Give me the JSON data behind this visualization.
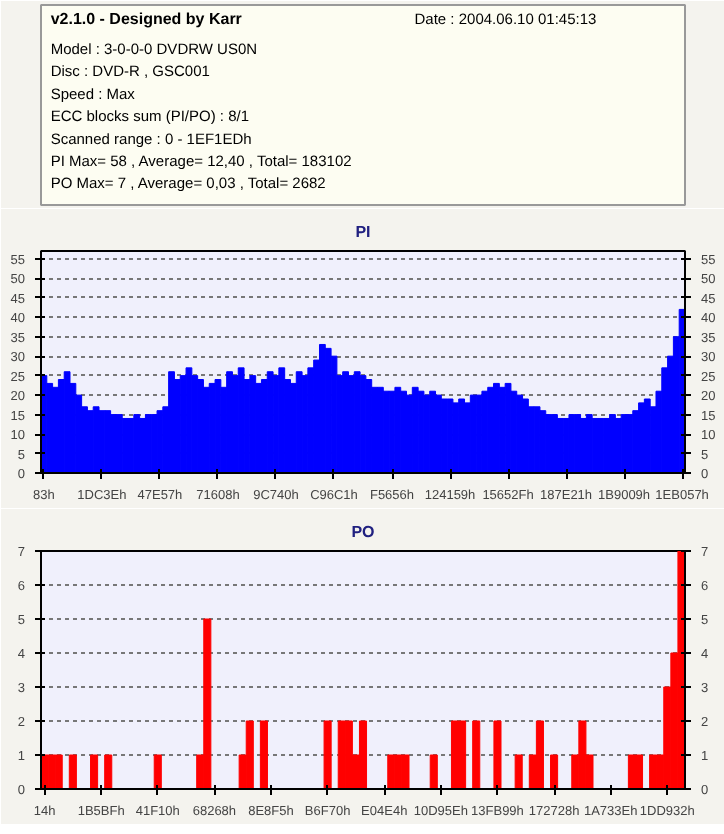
{
  "chart_data": [
    {
      "type": "other",
      "title": "v2.1.0 - Designed by Karr",
      "subtitle": "Date : 2004.06.10 01:45:13",
      "annotations": [
        "Model : 3-0-0-0 DVDRW US0N",
        "Disc : DVD-R , GSC001",
        "Speed : Max",
        "ECC blocks sum (PI/PO) : 8/1",
        "Scanned range : 0 - 1EF1EDh",
        "PI Max= 58 , Average= 12,40 , Total= 183102",
        "PO Max= 7 , Average= 0,03 , Total= 2682"
      ]
    },
    {
      "type": "bar",
      "title": "PI",
      "categories": [
        "83h",
        null,
        null,
        null,
        null,
        null,
        null,
        null,
        null,
        null,
        "1DC3Eh",
        null,
        null,
        null,
        null,
        null,
        null,
        null,
        null,
        null,
        "47E57h",
        null,
        null,
        null,
        null,
        null,
        null,
        null,
        null,
        null,
        "71608h",
        null,
        null,
        null,
        null,
        null,
        null,
        null,
        null,
        null,
        "9C740h",
        null,
        null,
        null,
        null,
        null,
        null,
        null,
        null,
        null,
        "C96C1h",
        null,
        null,
        null,
        null,
        null,
        null,
        null,
        null,
        null,
        "F5656h",
        null,
        null,
        null,
        null,
        null,
        null,
        null,
        null,
        null,
        "124159h",
        null,
        null,
        null,
        null,
        null,
        null,
        null,
        null,
        null,
        "15652Fh",
        null,
        null,
        null,
        null,
        null,
        null,
        null,
        null,
        null,
        "187E21h",
        null,
        null,
        null,
        null,
        null,
        null,
        null,
        null,
        null,
        "1B9009h",
        null,
        null,
        null,
        null,
        null,
        null,
        null,
        null,
        null,
        "1EB057h"
      ],
      "series": [
        {
          "color": "#0000ff",
          "values": [
            25,
            23,
            22,
            24,
            26,
            23,
            20,
            17,
            16,
            17,
            16,
            16,
            15,
            15,
            14,
            14,
            15,
            14,
            15,
            15,
            16,
            17,
            26,
            24,
            25,
            27,
            25,
            24,
            22,
            23,
            24,
            22,
            26,
            25,
            27,
            24,
            25,
            23,
            24,
            26,
            25,
            27,
            24,
            23,
            26,
            25,
            27,
            29,
            33,
            32,
            30,
            25,
            26,
            25,
            26,
            25,
            24,
            22,
            22,
            21,
            21,
            22,
            21,
            20,
            22,
            21,
            20,
            21,
            20,
            19,
            19,
            18,
            19,
            18,
            20,
            20,
            21,
            22,
            23,
            22,
            23,
            21,
            20,
            19,
            17,
            17,
            16,
            15,
            15,
            14,
            14,
            15,
            15,
            14,
            15,
            14,
            14,
            14,
            15,
            14,
            15,
            15,
            16,
            18,
            19,
            17,
            21,
            27,
            30,
            35,
            42
          ]
        }
      ],
      "ylim": [
        0,
        57
      ],
      "yticks": [
        0,
        5,
        10,
        15,
        20,
        25,
        30,
        35,
        40,
        45,
        50,
        55
      ],
      "y2lim": [
        0,
        57
      ],
      "y2ticks": [
        0,
        5,
        10,
        15,
        20,
        25,
        30,
        35,
        40,
        45,
        50,
        55
      ],
      "grid": "y"
    },
    {
      "type": "bar",
      "title": "PO",
      "categories": [
        "14h",
        null,
        null,
        null,
        null,
        null,
        null,
        null,
        "1B5BFh",
        null,
        null,
        null,
        null,
        null,
        null,
        null,
        "41F10h",
        null,
        null,
        null,
        null,
        null,
        null,
        null,
        "68268h",
        null,
        null,
        null,
        null,
        null,
        null,
        null,
        "8E8F5h",
        null,
        null,
        null,
        null,
        null,
        null,
        null,
        "B6F70h",
        null,
        null,
        null,
        null,
        null,
        null,
        null,
        "E04E4h",
        null,
        null,
        null,
        null,
        null,
        null,
        null,
        "10D95Eh",
        null,
        null,
        null,
        null,
        null,
        null,
        null,
        "13FB99h",
        null,
        null,
        null,
        null,
        null,
        null,
        null,
        "172728h",
        null,
        null,
        null,
        null,
        null,
        null,
        null,
        "1A733Eh",
        null,
        null,
        null,
        null,
        null,
        null,
        null,
        "1DD932h",
        null,
        null
      ],
      "series": [
        {
          "color": "#ff0000",
          "values": [
            1,
            1,
            1,
            0,
            1,
            0,
            0,
            1,
            0,
            1,
            0,
            0,
            0,
            0,
            0,
            0,
            1,
            0,
            0,
            0,
            0,
            0,
            1,
            5,
            0,
            0,
            0,
            0,
            1,
            2,
            0,
            2,
            0,
            0,
            0,
            0,
            0,
            0,
            0,
            0,
            2,
            0,
            2,
            2,
            1,
            2,
            0,
            0,
            0,
            1,
            1,
            1,
            0,
            0,
            0,
            1,
            0,
            0,
            2,
            2,
            0,
            2,
            0,
            0,
            2,
            0,
            0,
            1,
            0,
            1,
            2,
            0,
            1,
            0,
            0,
            1,
            2,
            1,
            0,
            0,
            0,
            0,
            0,
            1,
            1,
            0,
            1,
            1,
            3,
            4,
            7
          ]
        }
      ],
      "ylim": [
        0,
        7
      ],
      "yticks": [
        0,
        1,
        2,
        3,
        4,
        5,
        6,
        7
      ],
      "y2lim": [
        0,
        7
      ],
      "y2ticks": [
        0,
        1,
        2,
        3,
        4,
        5,
        6,
        7
      ],
      "grid": "y"
    }
  ]
}
